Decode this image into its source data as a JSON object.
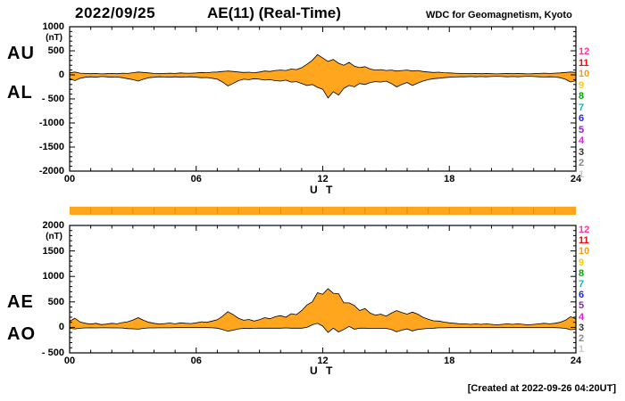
{
  "header": {
    "date": "2022/09/25",
    "title": "AE(11) (Real-Time)",
    "source": "WDC for Geomagnetism, Kyoto"
  },
  "footer": {
    "created_note": "[Created at 2022-09-26 04:20UT]"
  },
  "station_scale": {
    "labels": [
      "12",
      "11",
      "10",
      "9",
      "8",
      "7",
      "6",
      "5",
      "4",
      "3",
      "2",
      "1"
    ],
    "colors": [
      "#ff3399",
      "#ff0000",
      "#ff9900",
      "#ffcc00",
      "#00aa00",
      "#00bbbb",
      "#2222ff",
      "#8822cc",
      "#dd22dd",
      "#333333",
      "#888888",
      "#c8c8c8"
    ]
  },
  "availability_bar": {
    "fill_color": "#ffa51e",
    "tick_color": "#e08f00",
    "hour_segments": 24
  },
  "chart_data": [
    {
      "type": "area",
      "unit": "(nT)",
      "xlabel": "U T",
      "x_tick_hours": [
        0,
        6,
        12,
        18,
        24
      ],
      "x_tick_labels": [
        "00",
        "06",
        "12",
        "18",
        "24"
      ],
      "x_range_hours": [
        0,
        24
      ],
      "sample_interval_hours": 0.25,
      "ylim": [
        -2000,
        1000
      ],
      "y_tick_values": [
        1000,
        500,
        0,
        -500,
        -1000,
        -1500,
        -2000
      ],
      "y_tick_labels": [
        "1000",
        "500",
        "0",
        "- 500",
        "-1000",
        "-1500",
        "-2000"
      ],
      "y_minor_step": 100,
      "fill_color": "#ffa51e",
      "outline_color": "#000000",
      "series": [
        {
          "name": "AU",
          "values": [
            40,
            60,
            35,
            30,
            25,
            30,
            20,
            25,
            30,
            25,
            35,
            30,
            45,
            60,
            50,
            40,
            30,
            25,
            30,
            35,
            30,
            40,
            35,
            35,
            40,
            50,
            45,
            55,
            60,
            70,
            80,
            70,
            60,
            50,
            55,
            45,
            60,
            80,
            70,
            90,
            100,
            90,
            120,
            110,
            150,
            220,
            300,
            420,
            350,
            280,
            320,
            240,
            200,
            260,
            180,
            150,
            170,
            120,
            100,
            110,
            90,
            100,
            80,
            90,
            100,
            80,
            90,
            70,
            60,
            50,
            55,
            45,
            40,
            35,
            30,
            30,
            25,
            30,
            25,
            30,
            25,
            20,
            25,
            30,
            25,
            30,
            25,
            20,
            25,
            30,
            35,
            30,
            35,
            40,
            50,
            60,
            50
          ]
        },
        {
          "name": "AL",
          "values": [
            -80,
            -120,
            -70,
            -50,
            -40,
            -50,
            -35,
            -40,
            -50,
            -45,
            -60,
            -80,
            -100,
            -130,
            -90,
            -60,
            -50,
            -40,
            -45,
            -50,
            -40,
            -50,
            -45,
            -40,
            -50,
            -60,
            -55,
            -70,
            -90,
            -150,
            -230,
            -180,
            -120,
            -90,
            -100,
            -80,
            -90,
            -110,
            -100,
            -120,
            -130,
            -110,
            -150,
            -140,
            -180,
            -220,
            -200,
            -260,
            -300,
            -480,
            -350,
            -420,
            -280,
            -220,
            -250,
            -180,
            -200,
            -160,
            -140,
            -150,
            -130,
            -180,
            -250,
            -200,
            -160,
            -220,
            -170,
            -130,
            -100,
            -80,
            -70,
            -60,
            -50,
            -45,
            -40,
            -40,
            -35,
            -40,
            -35,
            -40,
            -35,
            -30,
            -35,
            -40,
            -35,
            -40,
            -35,
            -30,
            -35,
            -40,
            -45,
            -40,
            -45,
            -60,
            -90,
            -150,
            -120
          ]
        }
      ]
    },
    {
      "type": "area",
      "unit": "(nT)",
      "xlabel": "U T",
      "x_tick_hours": [
        0,
        6,
        12,
        18,
        24
      ],
      "x_tick_labels": [
        "00",
        "06",
        "12",
        "18",
        "24"
      ],
      "x_range_hours": [
        0,
        24
      ],
      "sample_interval_hours": 0.25,
      "ylim": [
        -500,
        2000
      ],
      "y_tick_values": [
        2000,
        1500,
        1000,
        500,
        0,
        -500
      ],
      "y_tick_labels": [
        "2000",
        "1500",
        "1000",
        "500",
        "0",
        "- 500"
      ],
      "y_minor_step": 100,
      "fill_color": "#ffa51e",
      "outline_color": "#000000",
      "series": [
        {
          "name": "AE",
          "values": [
            120,
            180,
            105,
            80,
            65,
            80,
            55,
            65,
            80,
            70,
            95,
            110,
            145,
            190,
            140,
            100,
            80,
            65,
            75,
            85,
            70,
            90,
            80,
            75,
            90,
            110,
            100,
            125,
            150,
            220,
            310,
            250,
            180,
            140,
            155,
            125,
            150,
            190,
            170,
            210,
            230,
            200,
            270,
            250,
            330,
            440,
            500,
            680,
            650,
            760,
            670,
            660,
            480,
            480,
            430,
            330,
            370,
            280,
            240,
            260,
            220,
            280,
            330,
            290,
            260,
            300,
            260,
            200,
            160,
            130,
            125,
            105,
            90,
            80,
            70,
            70,
            60,
            70,
            60,
            70,
            60,
            50,
            60,
            70,
            60,
            70,
            60,
            50,
            60,
            70,
            80,
            70,
            80,
            100,
            140,
            210,
            170
          ]
        },
        {
          "name": "AO",
          "values": [
            -20,
            -30,
            -18,
            -10,
            -8,
            -10,
            -8,
            -8,
            -10,
            -10,
            -13,
            -25,
            -28,
            -35,
            -20,
            -10,
            -10,
            -8,
            -8,
            -8,
            -5,
            -5,
            -5,
            -3,
            -5,
            -5,
            -5,
            -8,
            -15,
            -40,
            -75,
            -55,
            -30,
            -20,
            -23,
            -18,
            -15,
            -15,
            -15,
            -15,
            -15,
            -10,
            -15,
            -15,
            -15,
            0,
            50,
            80,
            25,
            -100,
            -15,
            -90,
            -40,
            20,
            -35,
            -15,
            -15,
            -20,
            -20,
            -20,
            -20,
            -40,
            -85,
            -55,
            -30,
            -70,
            -40,
            -30,
            -20,
            -15,
            -8,
            -8,
            -5,
            -5,
            -5,
            -5,
            -5,
            -5,
            -5,
            -5,
            -5,
            -5,
            -5,
            -5,
            -5,
            -5,
            -5,
            -5,
            -5,
            -5,
            -5,
            -5,
            -5,
            -10,
            -20,
            -45,
            -35
          ]
        }
      ]
    }
  ]
}
